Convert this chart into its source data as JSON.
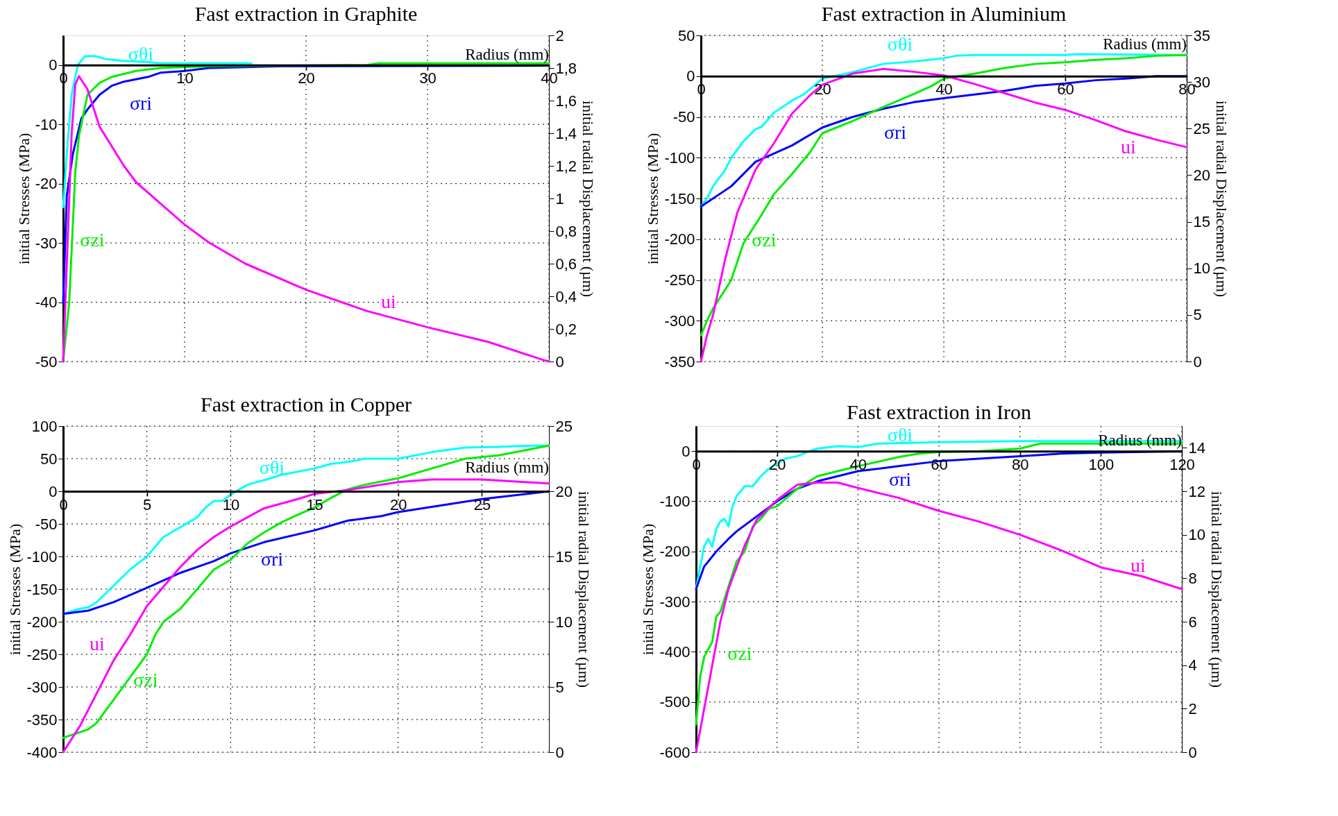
{
  "chart_data": [
    {
      "type": "line",
      "title": "Fast extraction in Graphite",
      "xlabel": "Radius (mm)",
      "ylabel": "initial Stresses (MPa)",
      "y2label": "initial radial Displacement (µm)",
      "xlim": [
        0,
        40
      ],
      "xticks": [
        0,
        10,
        20,
        30,
        40
      ],
      "ylim": [
        -50,
        5
      ],
      "yticks": [
        -50,
        -40,
        -30,
        -20,
        -10,
        0
      ],
      "y2lim": [
        0,
        2
      ],
      "y2ticks": [
        0,
        {
          "value": 0.2,
          "label": "0,2"
        },
        {
          "value": 0.4,
          "label": "0,4"
        },
        {
          "value": 0.6,
          "label": "0,6"
        },
        {
          "value": 0.8,
          "label": "0,8"
        },
        1,
        {
          "value": 1.2,
          "label": "1,2"
        },
        {
          "value": 1.4,
          "label": "1,4"
        },
        {
          "value": 1.6,
          "label": "1,6"
        },
        {
          "value": 1.8,
          "label": "1,8"
        },
        2
      ],
      "grid": true,
      "series": [
        {
          "name": "σθi",
          "color": "#00ffff",
          "x": [
            0,
            0.3,
            0.7,
            1.2,
            1.8,
            2.7,
            3.5,
            5,
            7,
            8,
            15.5
          ],
          "values": [
            -24,
            -15,
            -5,
            0,
            1.5,
            1.5,
            1,
            0.7,
            0.5,
            0.3,
            0.3
          ]
        },
        {
          "name": "σri",
          "color": "#0000ff",
          "x": [
            0,
            0.3,
            0.8,
            1.5,
            2,
            3,
            4,
            5,
            7,
            8,
            10,
            12,
            18,
            40
          ],
          "values": [
            -40,
            -22,
            -15,
            -9,
            -7.5,
            -5,
            -3.5,
            -2.8,
            -2,
            -1.3,
            -1,
            -0.5,
            -0.2,
            -0.1
          ]
        },
        {
          "name": "σzi",
          "color": "#00ee00",
          "x": [
            0,
            0.5,
            1,
            1.3,
            2,
            3,
            4,
            6,
            8,
            12,
            25,
            26,
            40
          ],
          "values": [
            -50,
            -40,
            -18,
            -12,
            -5,
            -3,
            -2,
            -1,
            -0.5,
            -0.2,
            0,
            0.3,
            0.3
          ]
        },
        {
          "name": "ui",
          "color": "#ff00ff",
          "axis": "y2",
          "x": [
            0,
            0.3,
            0.7,
            1,
            1.3,
            2,
            3,
            4,
            5,
            6,
            8,
            10,
            12,
            15,
            20,
            25,
            30,
            35,
            39.5,
            40
          ],
          "values": [
            0,
            0.6,
            1.4,
            1.7,
            1.75,
            1.67,
            1.44,
            1.32,
            1.2,
            1.1,
            0.97,
            0.84,
            0.73,
            0.6,
            0.44,
            0.31,
            0.21,
            0.12,
            0.01,
            0
          ]
        }
      ]
    },
    {
      "type": "line",
      "title": "Fast extraction in Aluminium",
      "xlabel": "Radius (mm)",
      "ylabel": "initial Stresses (MPa)",
      "y2label": "initial radial Displacement (µm)",
      "xlim": [
        0,
        80
      ],
      "xticks": [
        0,
        20,
        40,
        60,
        80
      ],
      "ylim": [
        -350,
        50
      ],
      "yticks": [
        -350,
        -300,
        -250,
        -200,
        -150,
        -100,
        -50,
        0,
        50
      ],
      "y2lim": [
        0,
        35
      ],
      "y2ticks": [
        0,
        5,
        10,
        15,
        20,
        25,
        30,
        35
      ],
      "grid": true,
      "series": [
        {
          "name": "σθi",
          "color": "#00ffff",
          "x": [
            0,
            1,
            2,
            4,
            5,
            7,
            9,
            10,
            12,
            15,
            17,
            20,
            22,
            25,
            30,
            35,
            40,
            42,
            45,
            60,
            62,
            80
          ],
          "values": [
            -160,
            -150,
            -135,
            -115,
            -100,
            -80,
            -65,
            -62,
            -45,
            -30,
            -22,
            -3,
            0,
            5,
            15,
            18,
            22,
            25,
            26,
            26,
            27,
            26
          ]
        },
        {
          "name": "σri",
          "color": "#0000ff",
          "x": [
            0,
            5,
            9,
            15,
            20,
            25,
            30,
            35,
            40,
            50,
            55,
            60,
            65,
            70,
            75,
            80
          ],
          "values": [
            -160,
            -135,
            -105,
            -85,
            -63,
            -50,
            -40,
            -32,
            -27,
            -18,
            -12,
            -9,
            -5,
            -3,
            0,
            0
          ]
        },
        {
          "name": "σzi",
          "color": "#00ee00",
          "x": [
            0,
            1,
            2,
            5,
            7,
            10,
            12,
            15,
            18,
            20,
            25,
            30,
            35,
            38,
            40,
            45,
            50,
            55,
            60,
            65,
            70,
            75,
            80
          ],
          "values": [
            -318,
            -300,
            -285,
            -250,
            -205,
            -170,
            -145,
            -120,
            -93,
            -70,
            -55,
            -38,
            -22,
            -12,
            -3,
            3,
            10,
            15,
            17,
            20,
            22,
            25,
            26
          ]
        },
        {
          "name": "ui",
          "color": "#ff00ff",
          "axis": "y2",
          "x": [
            0,
            1,
            2,
            4,
            6,
            9,
            12,
            15,
            18,
            20,
            25,
            30,
            35,
            40,
            45,
            50,
            55,
            60,
            65,
            70,
            75,
            80
          ],
          "values": [
            0,
            2.8,
            5,
            11,
            16,
            20.6,
            23.4,
            26.6,
            28.6,
            29.7,
            30.9,
            31.4,
            31.1,
            30.7,
            29.8,
            28.8,
            27.8,
            27,
            25.9,
            24.7,
            23.8,
            23
          ]
        }
      ]
    },
    {
      "type": "line",
      "title": "Fast extraction in Copper",
      "xlabel": "Radius (mm)",
      "ylabel": "initial Stresses (MPa)",
      "y2label": "initial radial Displacement (µm)",
      "xlim": [
        0,
        29
      ],
      "xticks": [
        0,
        5,
        10,
        15,
        20,
        25
      ],
      "ylim": [
        -400,
        100
      ],
      "yticks": [
        -400,
        -350,
        -300,
        -250,
        -200,
        -150,
        -100,
        -50,
        0,
        50,
        100
      ],
      "y2lim": [
        0,
        25
      ],
      "y2ticks": [
        0,
        5,
        10,
        15,
        20,
        25
      ],
      "grid": true,
      "series": [
        {
          "name": "σθi",
          "color": "#00ffff",
          "x": [
            0,
            1,
            1.5,
            2,
            3,
            4,
            5,
            6,
            7,
            8,
            8.5,
            9,
            9.5,
            10,
            11,
            12,
            13,
            14,
            15,
            16,
            17,
            18,
            20,
            22,
            24,
            26,
            28,
            29
          ],
          "values": [
            -188,
            -180,
            -178,
            -170,
            -145,
            -120,
            -100,
            -70,
            -55,
            -40,
            -25,
            -15,
            -15,
            -5,
            10,
            17,
            25,
            30,
            35,
            42,
            45,
            50,
            50,
            60,
            67,
            68,
            70,
            70
          ]
        },
        {
          "name": "σri",
          "color": "#0000ff",
          "x": [
            0,
            1.5,
            3,
            5,
            7,
            9,
            10,
            12,
            15,
            17,
            19,
            20,
            23,
            25,
            29
          ],
          "values": [
            -188,
            -183,
            -170,
            -148,
            -125,
            -107,
            -95,
            -78,
            -60,
            -45,
            -38,
            -32,
            -20,
            -12,
            0
          ]
        },
        {
          "name": "σzi",
          "color": "#00ee00",
          "x": [
            0,
            1.5,
            2,
            3,
            4,
            5,
            5.5,
            6,
            7,
            8,
            9,
            10,
            11,
            12,
            13,
            14,
            15,
            16,
            17,
            18,
            20,
            22,
            24,
            26,
            29
          ],
          "values": [
            -378,
            -365,
            -355,
            -320,
            -285,
            -250,
            -220,
            -200,
            -180,
            -150,
            -120,
            -105,
            -80,
            -63,
            -48,
            -36,
            -25,
            -10,
            3,
            10,
            20,
            35,
            50,
            55,
            70
          ]
        },
        {
          "name": "ui",
          "color": "#ff00ff",
          "axis": "y2",
          "x": [
            0,
            1,
            2,
            3,
            4,
            5,
            6,
            7,
            8,
            9,
            10,
            12,
            14,
            15,
            17,
            20,
            22,
            25,
            29
          ],
          "values": [
            0,
            2,
            4.5,
            7,
            9,
            11.2,
            12.7,
            14.2,
            15.5,
            16.5,
            17.3,
            18.7,
            19.4,
            19.8,
            20.1,
            20.7,
            20.9,
            20.9,
            20.6
          ]
        }
      ]
    },
    {
      "type": "line",
      "title": "Fast extraction in Iron",
      "xlabel": "Radius (mm)",
      "ylabel": "initial Stresses (MPa)",
      "y2label": "initial radial Displacement (µm)",
      "xlim": [
        0,
        120
      ],
      "xticks": [
        0,
        20,
        40,
        60,
        80,
        100,
        120
      ],
      "ylim": [
        -600,
        50
      ],
      "yticks": [
        -600,
        -500,
        -400,
        -300,
        -200,
        -100,
        0
      ],
      "y2lim": [
        0,
        15
      ],
      "y2ticks": [
        0,
        2,
        4,
        6,
        8,
        10,
        12,
        14
      ],
      "grid": true,
      "series": [
        {
          "name": "σθi",
          "color": "#00ffff",
          "x": [
            0,
            1,
            2,
            3,
            4,
            5,
            6,
            7,
            8,
            9,
            10,
            12,
            14,
            16,
            18,
            20,
            22,
            25,
            28,
            30,
            35,
            40,
            45,
            60,
            80,
            90,
            120
          ],
          "values": [
            -275,
            -230,
            -190,
            -175,
            -190,
            -155,
            -140,
            -135,
            -150,
            -110,
            -90,
            -70,
            -70,
            -50,
            -35,
            -25,
            -15,
            -10,
            0,
            5,
            10,
            8,
            15,
            18,
            20,
            20,
            20
          ]
        },
        {
          "name": "σri",
          "color": "#0000ff",
          "x": [
            0,
            2,
            5,
            8,
            10,
            15,
            20,
            25,
            30,
            35,
            40,
            50,
            60,
            70,
            80,
            90,
            100,
            120
          ],
          "values": [
            -275,
            -230,
            -200,
            -175,
            -160,
            -130,
            -100,
            -75,
            -60,
            -50,
            -40,
            -30,
            -20,
            -15,
            -10,
            -5,
            -3,
            0
          ]
        },
        {
          "name": "σzi",
          "color": "#00ee00",
          "x": [
            0,
            1,
            2,
            4,
            5,
            6,
            8,
            10,
            12,
            14,
            16,
            18,
            20,
            25,
            30,
            35,
            40,
            50,
            55,
            60,
            70,
            80,
            85,
            120
          ],
          "values": [
            -545,
            -450,
            -410,
            -380,
            -330,
            -320,
            -270,
            -220,
            -200,
            -150,
            -135,
            -115,
            -110,
            -75,
            -50,
            -40,
            -30,
            -12,
            -5,
            -2,
            0,
            5,
            15,
            15
          ]
        },
        {
          "name": "ui",
          "color": "#ff00ff",
          "axis": "y2",
          "x": [
            0,
            2,
            4,
            6,
            8,
            10,
            12,
            15,
            20,
            25,
            30,
            35,
            40,
            50,
            60,
            70,
            80,
            90,
            100,
            110,
            120
          ],
          "values": [
            0,
            2,
            4,
            6,
            7.5,
            8.5,
            9.5,
            10.7,
            11.6,
            12.3,
            12.4,
            12.4,
            12.15,
            11.7,
            11.1,
            10.6,
            10,
            9.3,
            8.5,
            8.1,
            7.5
          ]
        }
      ]
    }
  ]
}
